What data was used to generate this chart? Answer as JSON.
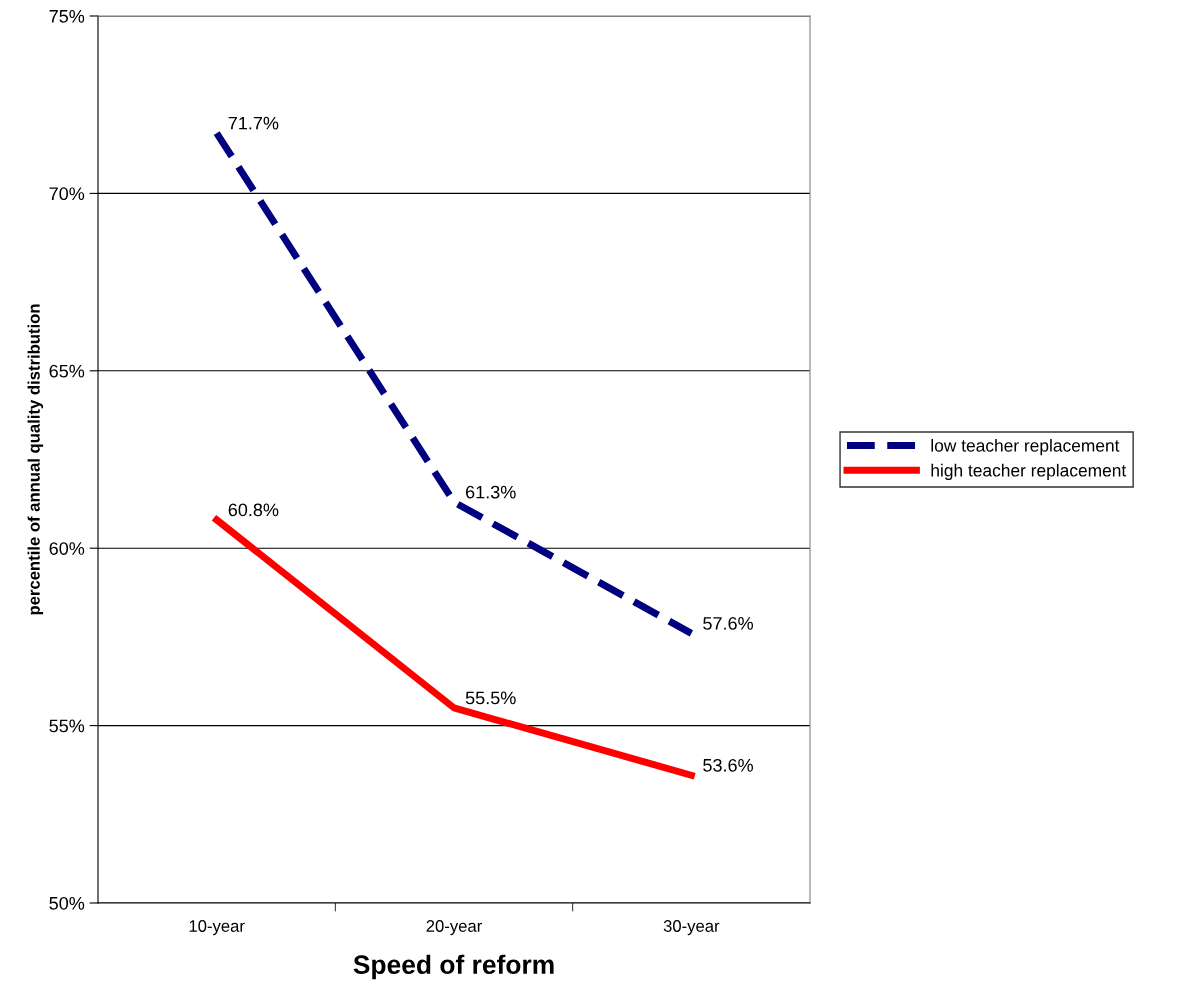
{
  "chart_data": {
    "type": "line",
    "xlabel": "Speed of reform",
    "ylabel": "percentile of annual quality distribution",
    "categories": [
      "10-year",
      "20-year",
      "30-year"
    ],
    "series": [
      {
        "name": "low teacher replacement",
        "color": "#000080",
        "line_style": "dashed",
        "values": [
          71.7,
          61.3,
          57.6
        ],
        "value_labels": [
          "71.7%",
          "61.3%",
          "57.6%"
        ]
      },
      {
        "name": "high teacher replacement",
        "color": "#ff0000",
        "line_style": "solid",
        "values": [
          60.8,
          55.5,
          53.6
        ],
        "value_labels": [
          "60.8%",
          "55.5%",
          "53.6%"
        ]
      }
    ],
    "ylim": [
      50,
      75
    ],
    "yticks": [
      {
        "value": 50,
        "label": "50%"
      },
      {
        "value": 55,
        "label": "55%"
      },
      {
        "value": 60,
        "label": "60%"
      },
      {
        "value": 65,
        "label": "65%"
      },
      {
        "value": 70,
        "label": "70%"
      },
      {
        "value": 75,
        "label": "75%"
      }
    ],
    "grid": "y",
    "legend": "right",
    "marker": "none"
  }
}
